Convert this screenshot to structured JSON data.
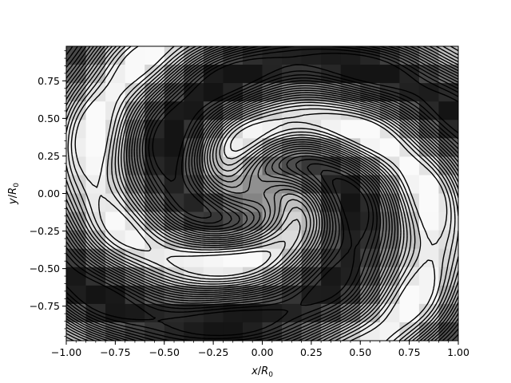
{
  "chart_data": {
    "type": "heatmap",
    "colormap": "grayscale",
    "overlay": "black contour lines",
    "xlabel_var": "x",
    "xlabel_unit": "R",
    "xlabel_sub": "0",
    "ylabel_var": "y",
    "ylabel_unit": "R",
    "ylabel_sub": "0",
    "xlim": [
      -1.0,
      1.0
    ],
    "ylim": [
      -0.98,
      0.98
    ],
    "x_ticks": [
      -1.0,
      -0.75,
      -0.5,
      -0.25,
      0.0,
      0.25,
      0.5,
      0.75,
      1.0
    ],
    "x_tick_labels": [
      "−1.00",
      "−0.75",
      "−0.50",
      "−0.25",
      "0.00",
      "0.25",
      "0.50",
      "0.75",
      "1.00"
    ],
    "y_ticks": [
      -0.75,
      -0.5,
      -0.25,
      0.0,
      0.25,
      0.5,
      0.75
    ],
    "y_tick_labels": [
      "−0.75",
      "−0.50",
      "−0.25",
      "0.00",
      "0.25",
      "0.50",
      "0.75"
    ],
    "grid": false,
    "legend": "none",
    "description_of_field": "two-armed spiral vortex density field; dark spiral arms, light inter-arm gaps, grey central core"
  }
}
